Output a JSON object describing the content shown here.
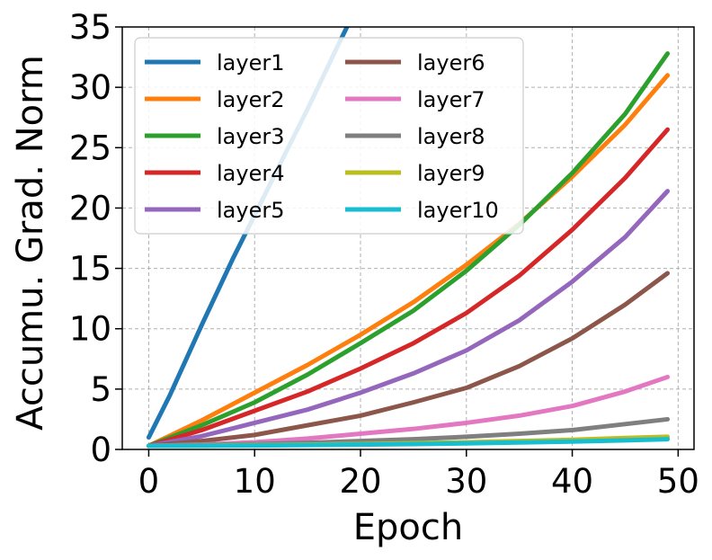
{
  "chart_data": {
    "type": "line",
    "xlabel": "Epoch",
    "ylabel": "Accumu. Grad. Norm",
    "xlim": [
      -2.5,
      51.5
    ],
    "ylim": [
      0,
      35
    ],
    "xticks": [
      0,
      10,
      20,
      30,
      40,
      50
    ],
    "yticks": [
      0,
      5,
      10,
      15,
      20,
      25,
      30,
      35
    ],
    "grid": true,
    "legend_position": "top-left",
    "legend_columns": 2,
    "x": [
      0,
      5,
      10,
      15,
      20,
      25,
      30,
      35,
      40,
      45,
      49
    ],
    "series": [
      {
        "name": "layer1",
        "color": "#1f77b4",
        "x": [
          0,
          2,
          5,
          8,
          10,
          13,
          15,
          18,
          19
        ],
        "values": [
          1.0,
          4.5,
          10.3,
          15.9,
          19.4,
          24.7,
          28.2,
          33.7,
          35.5
        ]
      },
      {
        "name": "layer2",
        "color": "#ff7f0e",
        "values": [
          0.3,
          2.4,
          4.7,
          7.0,
          9.5,
          12.2,
          15.3,
          18.7,
          22.6,
          26.9,
          31.0
        ]
      },
      {
        "name": "layer3",
        "color": "#2ca02c",
        "values": [
          0.3,
          2.0,
          3.9,
          6.2,
          8.8,
          11.5,
          14.8,
          18.6,
          22.9,
          27.8,
          32.8
        ]
      },
      {
        "name": "layer4",
        "color": "#d62728",
        "values": [
          0.3,
          1.6,
          3.2,
          4.8,
          6.7,
          8.8,
          11.3,
          14.4,
          18.2,
          22.5,
          26.5
        ]
      },
      {
        "name": "layer5",
        "color": "#9467bd",
        "values": [
          0.3,
          1.1,
          2.2,
          3.3,
          4.7,
          6.3,
          8.2,
          10.7,
          13.9,
          17.6,
          21.4
        ]
      },
      {
        "name": "layer6",
        "color": "#8c564b",
        "values": [
          0.3,
          0.7,
          1.2,
          2.0,
          2.8,
          3.9,
          5.1,
          6.9,
          9.2,
          12.0,
          14.6
        ]
      },
      {
        "name": "layer7",
        "color": "#e377c2",
        "values": [
          0.3,
          0.4,
          0.6,
          0.9,
          1.3,
          1.7,
          2.2,
          2.8,
          3.6,
          4.8,
          6.0
        ]
      },
      {
        "name": "layer8",
        "color": "#7f7f7f",
        "values": [
          0.3,
          0.35,
          0.45,
          0.55,
          0.7,
          0.85,
          1.05,
          1.3,
          1.6,
          2.1,
          2.5
        ]
      },
      {
        "name": "layer9",
        "color": "#bcbd22",
        "values": [
          0.3,
          0.32,
          0.36,
          0.4,
          0.45,
          0.52,
          0.6,
          0.7,
          0.8,
          0.95,
          1.05
        ]
      },
      {
        "name": "layer10",
        "color": "#17becf",
        "values": [
          0.3,
          0.31,
          0.33,
          0.36,
          0.4,
          0.45,
          0.5,
          0.58,
          0.65,
          0.75,
          0.85
        ]
      }
    ]
  }
}
